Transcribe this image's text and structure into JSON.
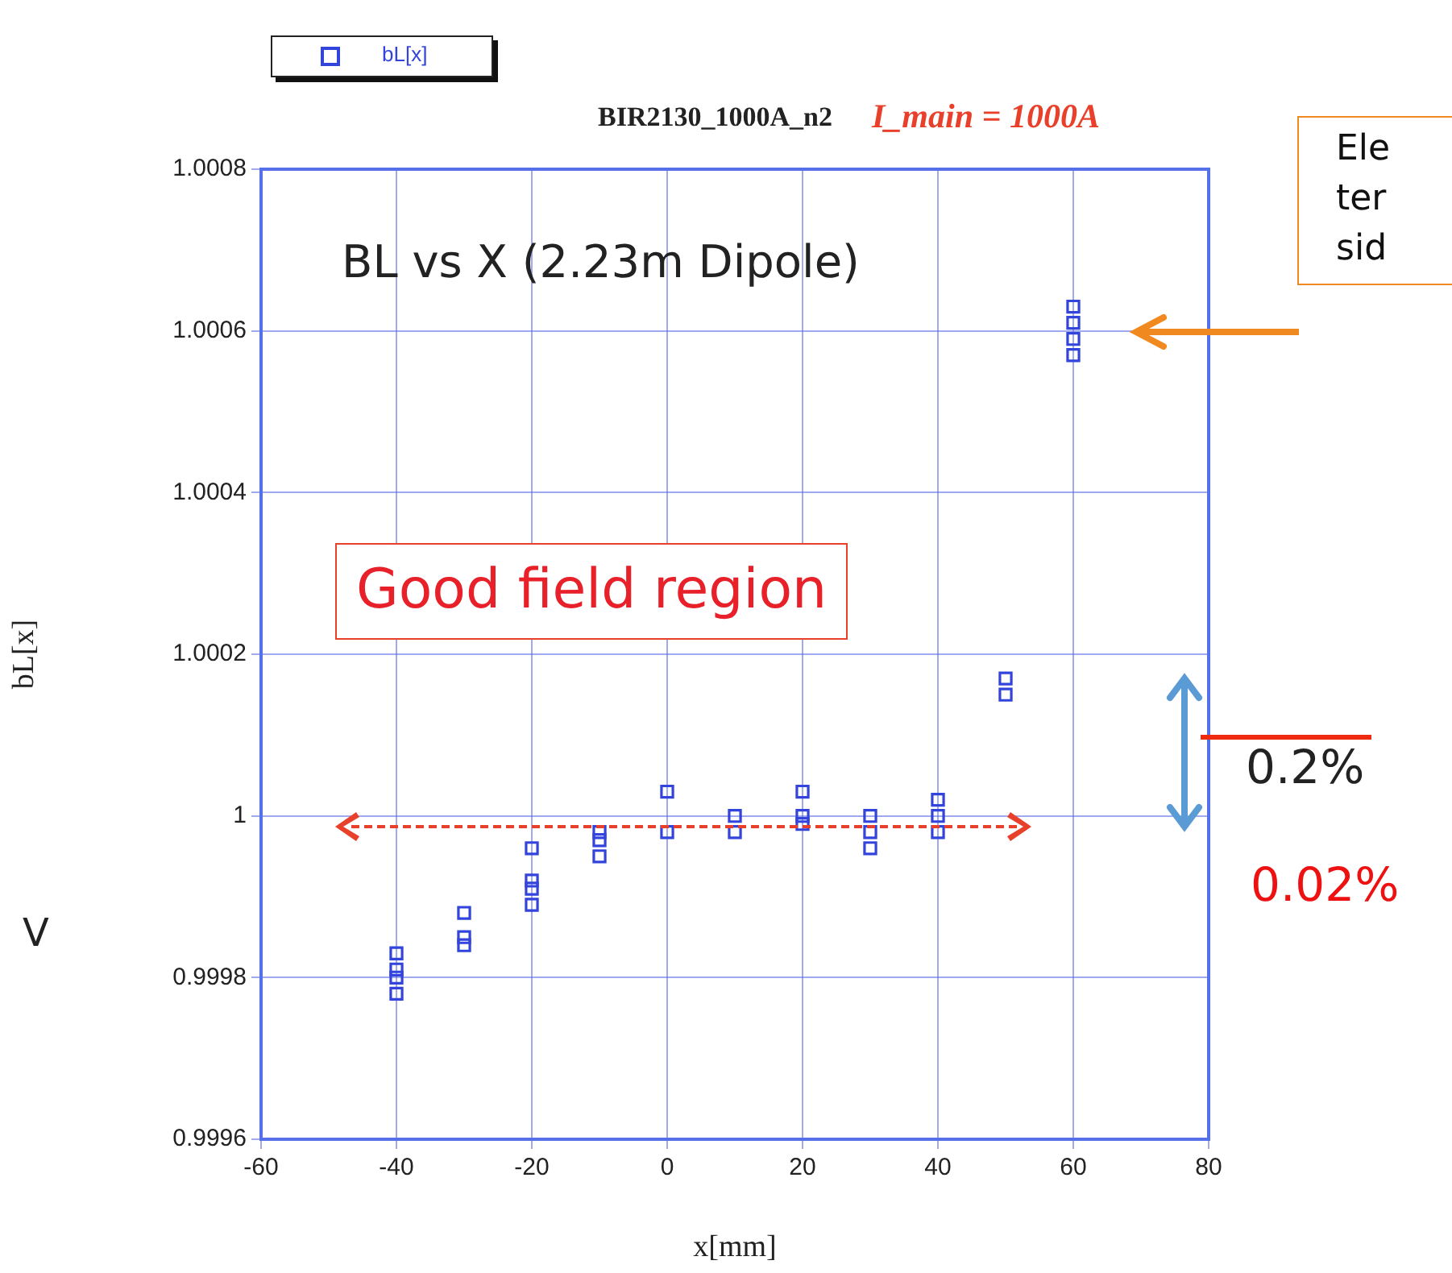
{
  "chart_data": {
    "type": "scatter",
    "title": "BIR2130_1000A_n2",
    "subtitle": "I_main = 1000A",
    "xlabel": "x[mm]",
    "ylabel": "bL[x]",
    "series": [
      {
        "name": "bL[x]",
        "color": "#3344dd",
        "x": [
          -40,
          -40,
          -40,
          -40,
          -30,
          -30,
          -30,
          -20,
          -20,
          -20,
          -20,
          -10,
          -10,
          -10,
          0,
          0,
          10,
          10,
          20,
          20,
          20,
          30,
          30,
          30,
          40,
          40,
          40,
          50,
          50,
          60,
          60,
          60,
          60
        ],
        "values": [
          0.99983,
          0.99981,
          0.9998,
          0.99978,
          0.99988,
          0.99985,
          0.99984,
          0.99996,
          0.99992,
          0.99991,
          0.99989,
          0.99998,
          0.99997,
          0.99995,
          1.00003,
          0.99998,
          1.0,
          0.99998,
          1.00003,
          1.0,
          0.99999,
          1.0,
          0.99998,
          0.99996,
          1.00002,
          1.0,
          0.99998,
          1.00017,
          1.00015,
          1.00063,
          1.00061,
          1.00059,
          1.00057
        ]
      }
    ],
    "xlim": [
      -60,
      80
    ],
    "xticks": [
      -60,
      -40,
      -20,
      0,
      20,
      40,
      60,
      80
    ],
    "ylim": [
      0.9996,
      1.0008
    ],
    "yticks": [
      0.9996,
      0.9998,
      1,
      1.0002,
      1.0004,
      1.0006,
      1.0008
    ],
    "grid": true,
    "marker": "square",
    "legend": "top left",
    "annotations": [
      "BL vs X (2.23m Dipole)",
      "Good field region",
      "Ele\nter\nsid",
      "0.2%",
      "0.02%",
      "V"
    ]
  }
}
